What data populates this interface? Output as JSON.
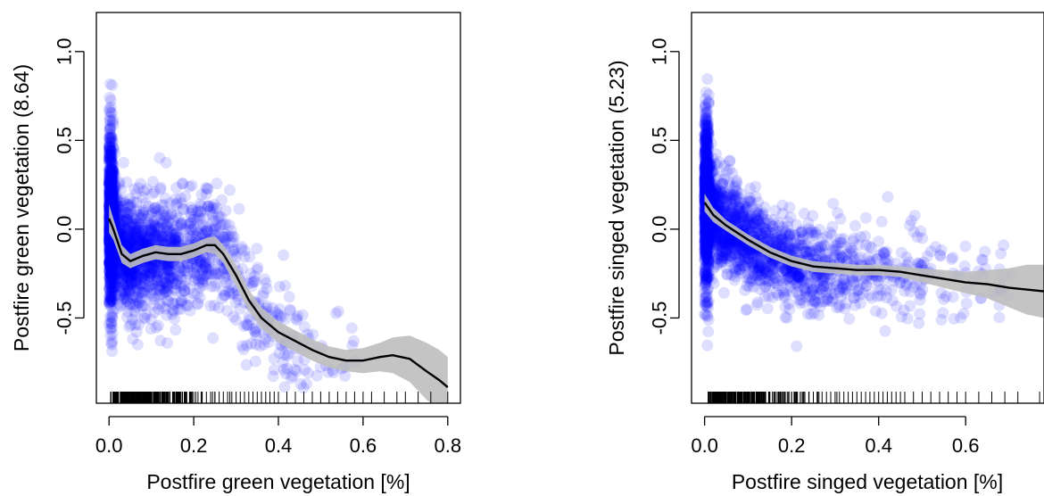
{
  "chart_data": [
    {
      "type": "scatter",
      "xlabel": "Postfire green vegetation [%]",
      "ylabel": "Postfire green vegetation (8.64)",
      "xlim": [
        -0.03,
        0.83
      ],
      "ylim": [
        -0.98,
        1.22
      ],
      "xticks": [
        0.0,
        0.2,
        0.4,
        0.6,
        0.8
      ],
      "xtick_labels": [
        "0.0",
        "0.2",
        "0.4",
        "0.6",
        "0.8"
      ],
      "yticks": [
        -0.5,
        0.0,
        0.5,
        1.0
      ],
      "ytick_labels": [
        "-0.5",
        "0.0",
        "0.5",
        "1.0"
      ],
      "point_color": "#0000ff",
      "smooth_color": "#000000",
      "band_color": "#bebebe",
      "smooth_curve": [
        {
          "x": 0.0,
          "y": 0.06,
          "lo": -0.02,
          "hi": 0.14
        },
        {
          "x": 0.01,
          "y": 0.0,
          "lo": -0.06,
          "hi": 0.06
        },
        {
          "x": 0.03,
          "y": -0.14,
          "lo": -0.19,
          "hi": -0.09
        },
        {
          "x": 0.05,
          "y": -0.18,
          "lo": -0.22,
          "hi": -0.14
        },
        {
          "x": 0.08,
          "y": -0.15,
          "lo": -0.19,
          "hi": -0.11
        },
        {
          "x": 0.11,
          "y": -0.13,
          "lo": -0.17,
          "hi": -0.09
        },
        {
          "x": 0.14,
          "y": -0.14,
          "lo": -0.18,
          "hi": -0.1
        },
        {
          "x": 0.17,
          "y": -0.14,
          "lo": -0.18,
          "hi": -0.1
        },
        {
          "x": 0.2,
          "y": -0.12,
          "lo": -0.16,
          "hi": -0.08
        },
        {
          "x": 0.23,
          "y": -0.09,
          "lo": -0.13,
          "hi": -0.05
        },
        {
          "x": 0.25,
          "y": -0.09,
          "lo": -0.14,
          "hi": -0.04
        },
        {
          "x": 0.27,
          "y": -0.14,
          "lo": -0.19,
          "hi": -0.09
        },
        {
          "x": 0.3,
          "y": -0.26,
          "lo": -0.32,
          "hi": -0.2
        },
        {
          "x": 0.33,
          "y": -0.4,
          "lo": -0.46,
          "hi": -0.34
        },
        {
          "x": 0.36,
          "y": -0.5,
          "lo": -0.56,
          "hi": -0.44
        },
        {
          "x": 0.4,
          "y": -0.58,
          "lo": -0.64,
          "hi": -0.52
        },
        {
          "x": 0.44,
          "y": -0.63,
          "lo": -0.69,
          "hi": -0.57
        },
        {
          "x": 0.48,
          "y": -0.68,
          "lo": -0.74,
          "hi": -0.62
        },
        {
          "x": 0.52,
          "y": -0.72,
          "lo": -0.78,
          "hi": -0.66
        },
        {
          "x": 0.56,
          "y": -0.74,
          "lo": -0.8,
          "hi": -0.68
        },
        {
          "x": 0.6,
          "y": -0.74,
          "lo": -0.81,
          "hi": -0.67
        },
        {
          "x": 0.64,
          "y": -0.72,
          "lo": -0.8,
          "hi": -0.64
        },
        {
          "x": 0.67,
          "y": -0.71,
          "lo": -0.81,
          "hi": -0.61
        },
        {
          "x": 0.71,
          "y": -0.73,
          "lo": -0.86,
          "hi": -0.6
        },
        {
          "x": 0.75,
          "y": -0.8,
          "lo": -0.96,
          "hi": -0.64
        },
        {
          "x": 0.78,
          "y": -0.85,
          "lo": -1.02,
          "hi": -0.68
        },
        {
          "x": 0.8,
          "y": -0.89,
          "lo": -1.06,
          "hi": -0.72
        }
      ],
      "rug_x": [
        0.01,
        0.02,
        0.03,
        0.04,
        0.05,
        0.06,
        0.07,
        0.08,
        0.09,
        0.1,
        0.11,
        0.12,
        0.13,
        0.14,
        0.15,
        0.16,
        0.17,
        0.18,
        0.19,
        0.2,
        0.21,
        0.22,
        0.23,
        0.24,
        0.25,
        0.26,
        0.27,
        0.28,
        0.29,
        0.3,
        0.31,
        0.32,
        0.33,
        0.34,
        0.35,
        0.36,
        0.37,
        0.38,
        0.39,
        0.4,
        0.42,
        0.44,
        0.46,
        0.48,
        0.5,
        0.52,
        0.54,
        0.56,
        0.58,
        0.6,
        0.62,
        0.65,
        0.68,
        0.7,
        0.73,
        0.76,
        0.8
      ]
    },
    {
      "type": "scatter",
      "xlabel": "Postfire singed vegetation [%]",
      "ylabel": "Postfire singed vegetation (5.23)",
      "xlim": [
        -0.03,
        0.78
      ],
      "ylim": [
        -0.98,
        1.22
      ],
      "xticks": [
        0.0,
        0.2,
        0.4,
        0.6
      ],
      "xtick_labels": [
        "0.0",
        "0.2",
        "0.4",
        "0.6"
      ],
      "yticks": [
        -0.5,
        0.0,
        0.5,
        1.0
      ],
      "ytick_labels": [
        "-0.5",
        "0.0",
        "0.5",
        "1.0"
      ],
      "point_color": "#0000ff",
      "smooth_color": "#000000",
      "band_color": "#bebebe",
      "smooth_curve": [
        {
          "x": 0.0,
          "y": 0.15,
          "lo": 0.1,
          "hi": 0.2
        },
        {
          "x": 0.02,
          "y": 0.08,
          "lo": 0.04,
          "hi": 0.12
        },
        {
          "x": 0.05,
          "y": 0.02,
          "lo": -0.01,
          "hi": 0.05
        },
        {
          "x": 0.1,
          "y": -0.06,
          "lo": -0.09,
          "hi": -0.03
        },
        {
          "x": 0.15,
          "y": -0.13,
          "lo": -0.16,
          "hi": -0.1
        },
        {
          "x": 0.2,
          "y": -0.18,
          "lo": -0.21,
          "hi": -0.15
        },
        {
          "x": 0.25,
          "y": -0.21,
          "lo": -0.24,
          "hi": -0.18
        },
        {
          "x": 0.3,
          "y": -0.22,
          "lo": -0.25,
          "hi": -0.19
        },
        {
          "x": 0.35,
          "y": -0.23,
          "lo": -0.26,
          "hi": -0.2
        },
        {
          "x": 0.4,
          "y": -0.23,
          "lo": -0.26,
          "hi": -0.2
        },
        {
          "x": 0.45,
          "y": -0.24,
          "lo": -0.27,
          "hi": -0.21
        },
        {
          "x": 0.5,
          "y": -0.26,
          "lo": -0.3,
          "hi": -0.22
        },
        {
          "x": 0.55,
          "y": -0.28,
          "lo": -0.33,
          "hi": -0.23
        },
        {
          "x": 0.6,
          "y": -0.3,
          "lo": -0.36,
          "hi": -0.24
        },
        {
          "x": 0.65,
          "y": -0.31,
          "lo": -0.39,
          "hi": -0.23
        },
        {
          "x": 0.7,
          "y": -0.33,
          "lo": -0.44,
          "hi": -0.22
        },
        {
          "x": 0.74,
          "y": -0.34,
          "lo": -0.48,
          "hi": -0.2
        },
        {
          "x": 0.78,
          "y": -0.35,
          "lo": -0.5,
          "hi": -0.2
        }
      ],
      "rug_x": [
        0.01,
        0.02,
        0.03,
        0.04,
        0.05,
        0.06,
        0.07,
        0.08,
        0.09,
        0.1,
        0.11,
        0.12,
        0.13,
        0.14,
        0.15,
        0.16,
        0.17,
        0.18,
        0.19,
        0.2,
        0.21,
        0.22,
        0.23,
        0.24,
        0.25,
        0.26,
        0.27,
        0.28,
        0.29,
        0.3,
        0.31,
        0.32,
        0.33,
        0.34,
        0.35,
        0.36,
        0.37,
        0.38,
        0.39,
        0.4,
        0.41,
        0.42,
        0.43,
        0.44,
        0.45,
        0.46,
        0.48,
        0.5,
        0.52,
        0.54,
        0.56,
        0.58,
        0.6,
        0.63,
        0.66,
        0.69,
        0.72,
        0.77
      ]
    }
  ]
}
